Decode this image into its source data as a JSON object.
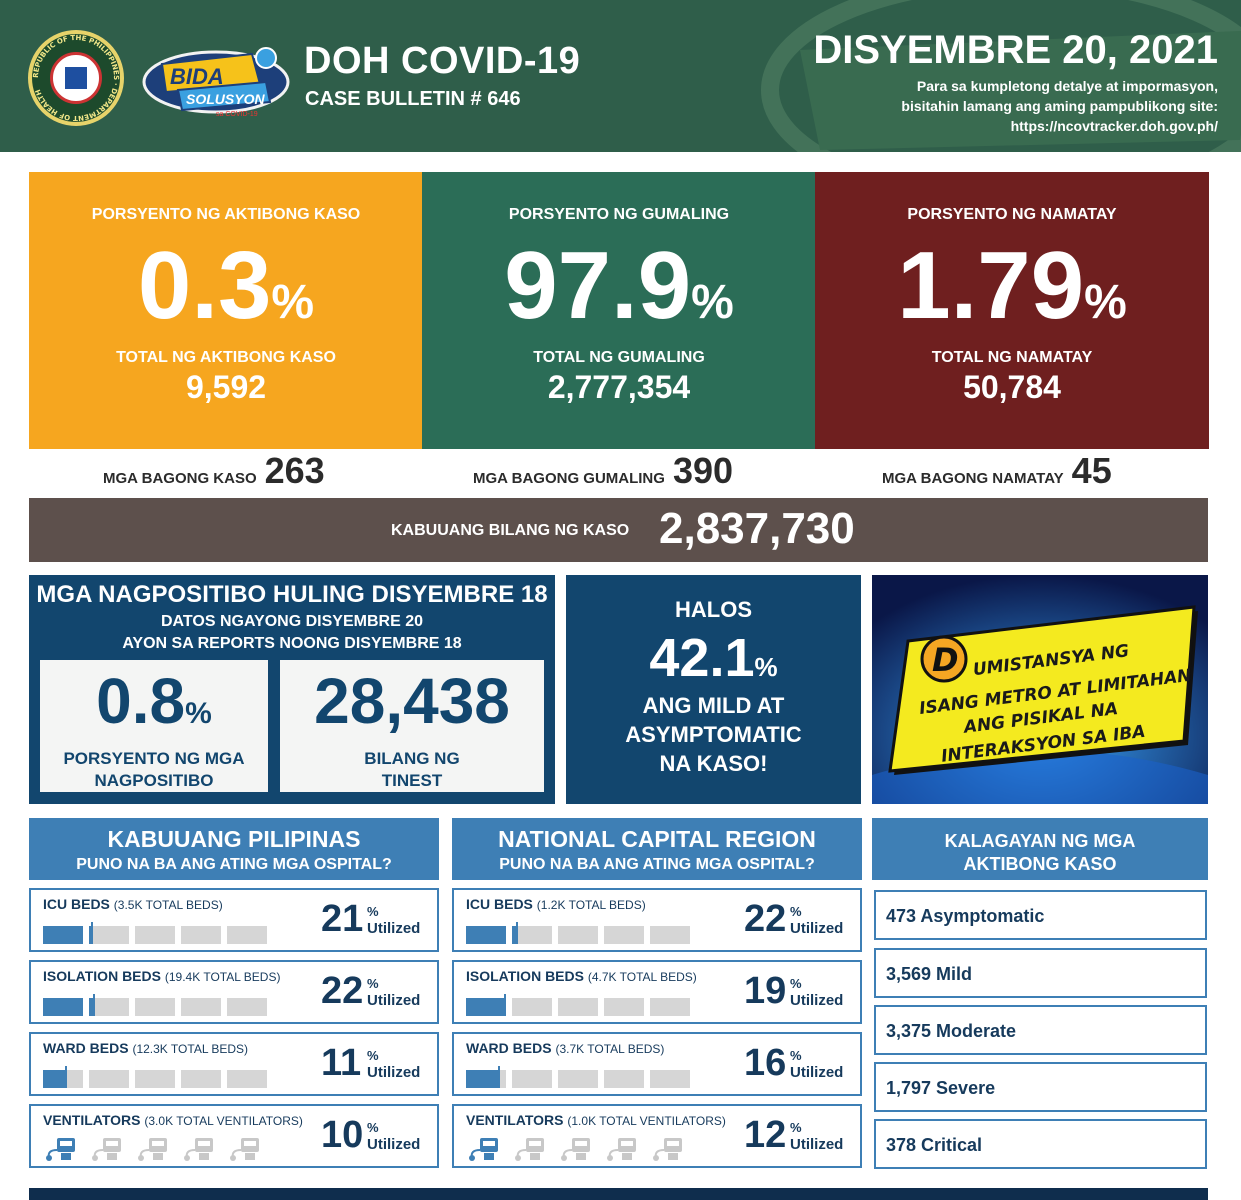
{
  "header": {
    "seal_text": "REPUBLIC OF THE PHILIPPINES · DEPARTMENT OF HEALTH",
    "campaign_logo": "BIDA SOLUSYON sa COVID-19",
    "title": "DOH COVID-19",
    "subtitle": "CASE BULLETIN # 646",
    "date": "DISYEMBRE 20, 2021",
    "note_line1": "Para sa kumpletong detalye at impormasyon,",
    "note_line2": "bisitahin lamang ang aming pampublikong site:",
    "note_line3": "https://ncovtracker.doh.gov.ph/"
  },
  "colors": {
    "header_bg": "#2f5e4a",
    "active": "#f6a61f",
    "recovered": "#2b6d57",
    "deaths": "#6f1f1f",
    "total_bar": "#5d504c",
    "navy": "#12466e",
    "panel_blue": "#3e7fb5"
  },
  "stats": {
    "active": {
      "label": "PORSYENTO NG AKTIBONG KASO",
      "percent": "0.3",
      "pct_symbol": "%",
      "total_label": "TOTAL NG AKTIBONG KASO",
      "total": "9,592",
      "new_label": "MGA BAGONG KASO",
      "new": "263"
    },
    "recovered": {
      "label": "PORSYENTO NG GUMALING",
      "percent": "97.9",
      "pct_symbol": "%",
      "total_label": "TOTAL NG GUMALING",
      "total": "2,777,354",
      "new_label": "MGA BAGONG GUMALING",
      "new": "390"
    },
    "deaths": {
      "label": "PORSYENTO NG NAMATAY",
      "percent": "1.79",
      "pct_symbol": "%",
      "total_label": "TOTAL NG NAMATAY",
      "total": "50,784",
      "new_label": "MGA BAGONG NAMATAY",
      "new": "45"
    }
  },
  "total_cases": {
    "label": "KABUUANG BILANG NG KASO",
    "value": "2,837,730"
  },
  "positivity": {
    "title": "MGA NAGPOSITIBO HULING DISYEMBRE 18",
    "sub1": "DATOS NGAYONG DISYEMBRE 20",
    "sub2": "AYON SA REPORTS NOONG DISYEMBRE 18",
    "rate": "0.8",
    "rate_symbol": "%",
    "rate_caption1": "PORSYENTO NG MGA",
    "rate_caption2": "NAGPOSITIBO",
    "tested": "28,438",
    "tested_caption1": "BILANG NG",
    "tested_caption2": "TINEST"
  },
  "mild": {
    "line1": "HALOS",
    "percent": "42.1",
    "pct_symbol": "%",
    "line3": "ANG MILD AT",
    "line4": "ASYMPTOMATIC",
    "line5": "NA KASO!"
  },
  "promo": {
    "initial": "D",
    "line1": "UMISTANSYA NG",
    "line2": "ISANG METRO AT LIMITAHAN",
    "line3": "ANG PISIKAL NA",
    "line4": "INTERAKSYON SA IBA"
  },
  "philippines": {
    "title": "KABUUANG PILIPINAS",
    "subtitle": "PUNO NA BA ANG ATING MGA OSPITAL?",
    "rows": [
      {
        "name": "ICU BEDS",
        "cap": "(3.5K TOTAL BEDS)",
        "pct": "21",
        "sym": "%",
        "util": "Utilized",
        "fill": 0.21,
        "icon": "bed"
      },
      {
        "name": "ISOLATION BEDS",
        "cap": "(19.4K TOTAL BEDS)",
        "pct": "22",
        "sym": "%",
        "util": "Utilized",
        "fill": 0.22,
        "icon": "bed"
      },
      {
        "name": "WARD BEDS",
        "cap": "(12.3K TOTAL BEDS)",
        "pct": "11",
        "sym": "%",
        "util": "Utilized",
        "fill": 0.11,
        "icon": "bed"
      },
      {
        "name": "VENTILATORS",
        "cap": "(3.0K TOTAL VENTILATORS)",
        "pct": "10",
        "sym": "%",
        "util": "Utilized",
        "fill": 0.1,
        "icon": "ventilator"
      }
    ]
  },
  "ncr": {
    "title": "NATIONAL CAPITAL REGION",
    "subtitle": "PUNO NA BA ANG ATING MGA OSPITAL?",
    "rows": [
      {
        "name": "ICU BEDS",
        "cap": "(1.2K TOTAL BEDS)",
        "pct": "22",
        "sym": "%",
        "util": "Utilized",
        "fill": 0.22,
        "icon": "bed"
      },
      {
        "name": "ISOLATION BEDS",
        "cap": "(4.7K TOTAL BEDS)",
        "pct": "19",
        "sym": "%",
        "util": "Utilized",
        "fill": 0.19,
        "icon": "bed"
      },
      {
        "name": "WARD BEDS",
        "cap": "(3.7K TOTAL BEDS)",
        "pct": "16",
        "sym": "%",
        "util": "Utilized",
        "fill": 0.16,
        "icon": "bed"
      },
      {
        "name": "VENTILATORS",
        "cap": "(1.0K TOTAL VENTILATORS)",
        "pct": "12",
        "sym": "%",
        "util": "Utilized",
        "fill": 0.12,
        "icon": "ventilator"
      }
    ]
  },
  "status": {
    "title1": "KALAGAYAN NG MGA",
    "title2": "AKTIBONG KASO",
    "items": [
      "473 Asymptomatic",
      "3,569 Mild",
      "3,375 Moderate",
      "1,797 Severe",
      "378 Critical"
    ]
  }
}
